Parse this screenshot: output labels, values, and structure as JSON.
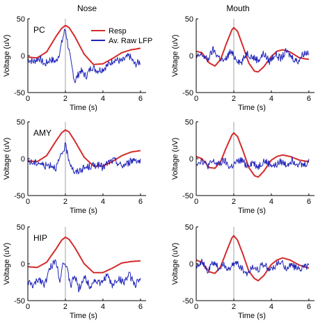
{
  "column_titles": [
    "Nose",
    "Mouth"
  ],
  "row_labels": [
    "PC",
    "AMY",
    "HIP"
  ],
  "legend": [
    {
      "label": "Resp",
      "color": "#d42a2a"
    },
    {
      "label": "Av. Raw LFP",
      "color": "#1f24b8"
    }
  ],
  "colors": {
    "resp": "#d42a2a",
    "lfp": "#1f24b8",
    "axis": "#000000",
    "marker": "#8a8a8a"
  },
  "axes": {
    "xlabel": "Time (s)",
    "ylabel": "Voltage (uV)",
    "xlim": [
      0,
      6.3
    ],
    "ylim": [
      -50,
      50
    ],
    "xticks": [
      0,
      2,
      4,
      6
    ],
    "yticks": [
      -50,
      0,
      50
    ],
    "event_marker_x": 2
  },
  "chart_data": [
    {
      "type": "line",
      "panel": "Nose - PC",
      "column": "Nose",
      "row_label": "PC",
      "xlabel": "Time (s)",
      "ylabel": "Voltage (uV)",
      "xlim": [
        0,
        6.3
      ],
      "ylim": [
        -50,
        50
      ],
      "series": [
        {
          "name": "Resp",
          "x": [
            0,
            0.5,
            1.0,
            1.5,
            1.8,
            2.0,
            2.2,
            2.5,
            3.0,
            3.5,
            4.0,
            4.5,
            5.0,
            5.5,
            6.0
          ],
          "values": [
            -2,
            -3,
            5,
            26,
            37,
            41,
            38,
            26,
            2,
            -12,
            -11,
            -4,
            4,
            8,
            10
          ]
        },
        {
          "name": "Av. Raw LFP",
          "x": [
            0,
            0.3,
            0.6,
            0.9,
            1.2,
            1.5,
            1.7,
            1.9,
            2.0,
            2.1,
            2.3,
            2.5,
            2.8,
            3.1,
            3.4,
            3.7,
            4.0,
            4.3,
            4.6,
            5.0,
            5.4,
            5.7,
            6.0
          ],
          "values": [
            -5,
            -8,
            -3,
            -12,
            -5,
            -8,
            5,
            28,
            37,
            20,
            -10,
            -35,
            -20,
            -28,
            -15,
            -20,
            -18,
            -12,
            -5,
            -8,
            0,
            -12,
            -8
          ]
        }
      ]
    },
    {
      "type": "line",
      "panel": "Mouth - PC",
      "column": "Mouth",
      "row_label": "",
      "xlabel": "Time (s)",
      "ylabel": "Voltage (uV)",
      "xlim": [
        0,
        6.3
      ],
      "ylim": [
        -50,
        50
      ],
      "series": [
        {
          "name": "Resp",
          "x": [
            0,
            0.3,
            0.7,
            1.0,
            1.3,
            1.6,
            1.9,
            2.0,
            2.2,
            2.5,
            2.8,
            3.1,
            3.3,
            3.6,
            4.0,
            4.3,
            4.6,
            5.0,
            5.5,
            6.0
          ],
          "values": [
            6,
            4,
            -10,
            -14,
            -5,
            16,
            35,
            38,
            33,
            12,
            -10,
            -21,
            -22,
            -15,
            -1,
            6,
            8,
            5,
            -3,
            -5
          ]
        },
        {
          "name": "Av. Raw LFP",
          "x": [
            0,
            0.3,
            0.6,
            0.9,
            1.2,
            1.5,
            1.8,
            2.1,
            2.4,
            2.7,
            3.0,
            3.3,
            3.6,
            3.9,
            4.2,
            4.5,
            4.8,
            5.1,
            5.4,
            5.7,
            6.0
          ],
          "values": [
            -3,
            2,
            -6,
            8,
            -2,
            -8,
            5,
            -3,
            -10,
            4,
            -2,
            -6,
            3,
            -8,
            2,
            -4,
            6,
            -2,
            -8,
            3,
            5
          ]
        }
      ]
    },
    {
      "type": "line",
      "panel": "Nose - AMY",
      "column": "Nose",
      "row_label": "AMY",
      "xlabel": "Time (s)",
      "ylabel": "Voltage (uV)",
      "xlim": [
        0,
        6.3
      ],
      "ylim": [
        -50,
        50
      ],
      "series": [
        {
          "name": "Resp",
          "x": [
            0,
            0.5,
            1.0,
            1.5,
            1.8,
            2.0,
            2.2,
            2.5,
            3.0,
            3.5,
            4.0,
            4.5,
            5.0,
            5.5,
            6.0
          ],
          "values": [
            -3,
            -4,
            4,
            24,
            35,
            39,
            36,
            24,
            2,
            -10,
            -10,
            -4,
            4,
            9,
            11
          ]
        },
        {
          "name": "Av. Raw LFP",
          "x": [
            0,
            0.3,
            0.6,
            0.9,
            1.2,
            1.5,
            1.8,
            2.0,
            2.2,
            2.5,
            2.8,
            3.1,
            3.4,
            3.7,
            4.0,
            4.3,
            4.6,
            5.0,
            5.4,
            5.7,
            6.0
          ],
          "values": [
            -3,
            -6,
            -5,
            -10,
            -8,
            -12,
            5,
            18,
            -2,
            -20,
            -15,
            -12,
            -10,
            -8,
            -12,
            -5,
            -2,
            -10,
            -5,
            0,
            -5
          ]
        }
      ]
    },
    {
      "type": "line",
      "panel": "Mouth - AMY",
      "column": "Mouth",
      "row_label": "",
      "xlabel": "Time (s)",
      "ylabel": "Voltage (uV)",
      "xlim": [
        0,
        6.3
      ],
      "ylim": [
        -50,
        50
      ],
      "series": [
        {
          "name": "Resp",
          "x": [
            0,
            0.3,
            0.7,
            1.0,
            1.3,
            1.6,
            1.9,
            2.0,
            2.2,
            2.5,
            2.8,
            3.1,
            3.3,
            3.6,
            4.0,
            4.3,
            4.6,
            5.0,
            5.5,
            6.0
          ],
          "values": [
            3,
            0,
            -12,
            -13,
            -4,
            15,
            32,
            35,
            30,
            10,
            -12,
            -23,
            -25,
            -17,
            -2,
            3,
            5,
            3,
            -2,
            -4
          ]
        },
        {
          "name": "Av. Raw LFP",
          "x": [
            0,
            0.3,
            0.6,
            0.9,
            1.2,
            1.5,
            1.8,
            2.1,
            2.4,
            2.7,
            3.0,
            3.3,
            3.6,
            3.9,
            4.2,
            4.5,
            4.8,
            5.1,
            5.4,
            5.7,
            6.0
          ],
          "values": [
            -6,
            -2,
            -10,
            -4,
            -8,
            -3,
            -12,
            -6,
            -2,
            -9,
            -5,
            -11,
            -3,
            -7,
            -10,
            -4,
            -8,
            -2,
            -6,
            -9,
            -4
          ]
        }
      ]
    },
    {
      "type": "line",
      "panel": "Nose - HIP",
      "column": "Nose",
      "row_label": "HIP",
      "xlabel": "Time (s)",
      "ylabel": "Voltage (uV)",
      "xlim": [
        0,
        6.3
      ],
      "ylim": [
        -50,
        50
      ],
      "series": [
        {
          "name": "Resp",
          "x": [
            0,
            0.5,
            1.0,
            1.5,
            1.8,
            2.0,
            2.2,
            2.5,
            3.0,
            3.5,
            4.0,
            4.5,
            5.0,
            5.5,
            6.0
          ],
          "values": [
            -4,
            -5,
            2,
            20,
            32,
            36,
            33,
            22,
            0,
            -12,
            -12,
            -6,
            1,
            3,
            4
          ]
        },
        {
          "name": "Av. Raw LFP",
          "x": [
            0,
            0.3,
            0.6,
            0.9,
            1.2,
            1.5,
            1.7,
            1.9,
            2.1,
            2.3,
            2.5,
            2.7,
            3.0,
            3.3,
            3.6,
            3.9,
            4.2,
            4.5,
            4.8,
            5.1,
            5.4,
            5.7,
            6.0
          ],
          "values": [
            -25,
            -30,
            -20,
            -28,
            -5,
            5,
            -22,
            5,
            -10,
            -30,
            -15,
            -35,
            -18,
            -30,
            -22,
            -28,
            -15,
            -30,
            -20,
            -25,
            -15,
            -28,
            -22
          ]
        }
      ]
    },
    {
      "type": "line",
      "panel": "Mouth - HIP",
      "column": "Mouth",
      "row_label": "",
      "xlabel": "Time (s)",
      "ylabel": "Voltage (uV)",
      "xlim": [
        0,
        6.3
      ],
      "ylim": [
        -50,
        50
      ],
      "series": [
        {
          "name": "Resp",
          "x": [
            0,
            0.3,
            0.7,
            1.0,
            1.3,
            1.6,
            1.9,
            2.0,
            2.2,
            2.5,
            2.8,
            3.1,
            3.3,
            3.6,
            4.0,
            4.3,
            4.6,
            5.0,
            5.5,
            6.0
          ],
          "values": [
            5,
            2,
            -11,
            -13,
            -4,
            16,
            35,
            38,
            32,
            12,
            -10,
            -20,
            -23,
            -16,
            -1,
            5,
            8,
            5,
            -2,
            -6
          ]
        },
        {
          "name": "Av. Raw LFP",
          "x": [
            0,
            0.3,
            0.6,
            0.9,
            1.2,
            1.5,
            1.8,
            2.1,
            2.4,
            2.7,
            3.0,
            3.3,
            3.6,
            3.9,
            4.2,
            4.5,
            4.8,
            5.1,
            5.4,
            5.7,
            6.0
          ],
          "values": [
            -3,
            4,
            -12,
            2,
            -6,
            -2,
            -8,
            3,
            -5,
            -14,
            -4,
            -7,
            0,
            -9,
            -3,
            2,
            -6,
            -1,
            -8,
            -4,
            -2
          ]
        }
      ]
    }
  ]
}
